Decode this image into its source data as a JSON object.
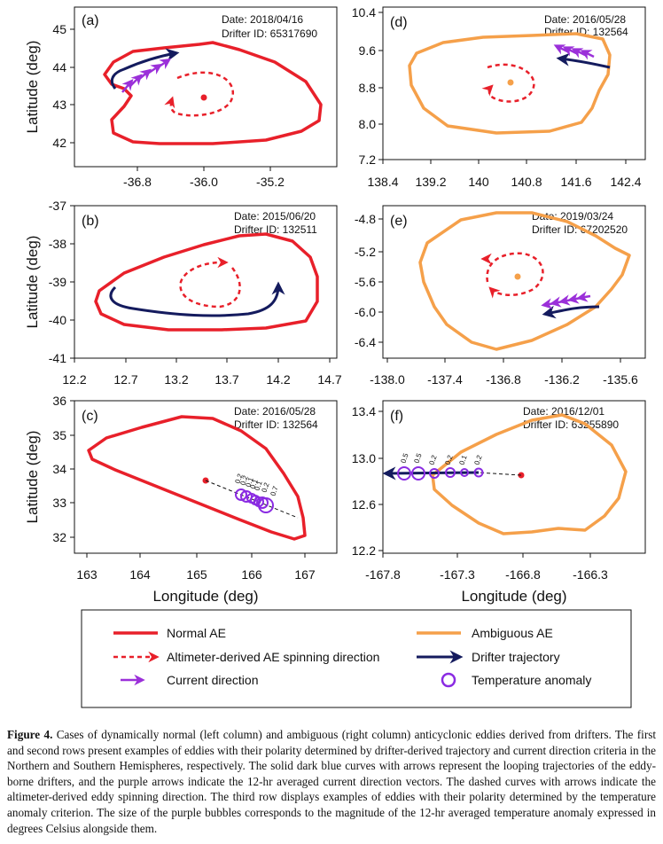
{
  "caption": {
    "label": "Figure 4.",
    "text": "Cases of dynamically normal (left column) and ambiguous (right column) anticyclonic eddies derived from drifters. The first and second rows present examples of eddies with their polarity determined by drifter-derived trajectory and current direction criteria in the Northern and Southern Hemispheres, respectively. The solid dark blue curves with arrows represent the looping trajectories of the eddy-borne drifters, and the purple arrows indicate the 12-hr averaged current direction vectors. The dashed curves with arrows indicate the altimeter-derived eddy spinning direction. The third row displays examples of eddies with their polarity determined by the temperature anomaly criterion. The size of the purple bubbles corresponds to the magnitude of the 12-hr averaged temperature anomaly expressed in degrees Celsius alongside them."
  },
  "axes": {
    "xlabel": "Longitude (deg)",
    "ylabel": "Latitude (deg)"
  },
  "legend": {
    "normal_ae": "Normal AE",
    "ambiguous_ae": "Ambiguous AE",
    "altimeter": "Altimeter-derived AE spinning direction",
    "drifter": "Drifter trajectory",
    "current": "Current direction",
    "temperature": "Temperature anomaly"
  },
  "colors": {
    "normal_ae": "#e8202a",
    "ambiguous_ae": "#f5a04a",
    "drifter": "#141b5e",
    "current": "#9b30d9",
    "temperature": "#8a2be2"
  },
  "panels": [
    {
      "id": "a",
      "label": "(a)",
      "date": "Date: 2018/04/16",
      "drifter": "Drifter ID: 65317690",
      "xticks": [
        "-36.8",
        "-36.0",
        "-35.2"
      ],
      "yticks": [
        "45",
        "44",
        "43",
        "42"
      ],
      "eddy_type": "normal",
      "center": [
        -36.0,
        43.2
      ]
    },
    {
      "id": "d",
      "label": "(d)",
      "date": "Date: 2016/05/28",
      "drifter": "Drifter ID: 132564",
      "xticks": [
        "138.4",
        "139.2",
        "140",
        "140.8",
        "141.6",
        "142.4"
      ],
      "yticks": [
        "10.4",
        "9.6",
        "8.8",
        "8.0",
        "7.2"
      ],
      "eddy_type": "ambiguous",
      "center": [
        140.5,
        8.9
      ]
    },
    {
      "id": "b",
      "label": "(b)",
      "date": "Date: 2015/06/20",
      "drifter": "Drifter ID: 132511",
      "xticks": [
        "12.2",
        "12.7",
        "13.2",
        "13.7",
        "14.2",
        "14.7"
      ],
      "yticks": [
        "-37",
        "-38",
        "-39",
        "-40",
        "-41"
      ],
      "eddy_type": "normal",
      "center": [
        13.7,
        -39.6
      ]
    },
    {
      "id": "e",
      "label": "(e)",
      "date": "Date: 2019/03/24",
      "drifter": "Drifter ID: 67202520",
      "xticks": [
        "-138.0",
        "-137.4",
        "-136.8",
        "-136.2",
        "-135.6"
      ],
      "yticks": [
        "-4.8",
        "-5.2",
        "-5.6",
        "-6.0",
        "-6.4"
      ],
      "eddy_type": "ambiguous",
      "center": [
        -136.7,
        -5.5
      ]
    },
    {
      "id": "c",
      "label": "(c)",
      "date": "Date: 2016/05/28",
      "drifter": "Drifter ID: 132564",
      "xticks": [
        "163",
        "164",
        "165",
        "166",
        "167"
      ],
      "yticks": [
        "36",
        "35",
        "34",
        "33",
        "32"
      ],
      "eddy_type": "normal",
      "center": [
        165.2,
        33.65
      ],
      "temperature_anomaly": [
        "0.2",
        "0.2",
        "0.1",
        "0.1",
        "0.1",
        "0.2",
        "0.7"
      ]
    },
    {
      "id": "f",
      "label": "(f)",
      "date": "Date: 2016/12/01",
      "drifter": "Drifter ID: 63255890",
      "xticks": [
        "-167.8",
        "-167.3",
        "-166.8",
        "-166.3"
      ],
      "yticks": [
        "13.4",
        "13.0",
        "12.6",
        "12.2"
      ],
      "eddy_type": "ambiguous",
      "center": [
        -166.8,
        12.85
      ],
      "temperature_anomaly": [
        "0.5",
        "0.5",
        "0.2",
        "0.2",
        "0.1",
        "0.2"
      ]
    }
  ]
}
